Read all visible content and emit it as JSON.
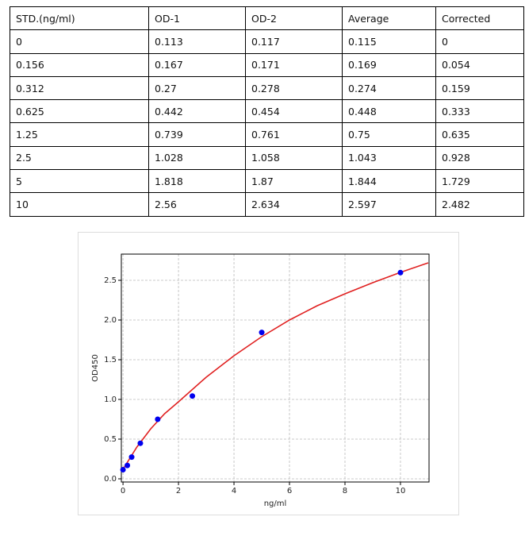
{
  "table": {
    "header": [
      "STD.(ng/ml)",
      "OD-1",
      "OD-2",
      "Average",
      "Corrected"
    ],
    "rows": [
      [
        "0",
        "0.113",
        "0.117",
        "0.115",
        "0"
      ],
      [
        "0.156",
        "0.167",
        "0.171",
        "0.169",
        "0.054"
      ],
      [
        "0.312",
        "0.27",
        "0.278",
        "0.274",
        "0.159"
      ],
      [
        "0.625",
        "0.442",
        "0.454",
        "0.448",
        "0.333"
      ],
      [
        "1.25",
        "0.739",
        "0.761",
        "0.75",
        "0.635"
      ],
      [
        "2.5",
        "1.028",
        "1.058",
        "1.043",
        "0.928"
      ],
      [
        "5",
        "1.818",
        "1.87",
        "1.844",
        "1.729"
      ],
      [
        "10",
        "2.56",
        "2.634",
        "2.597",
        "2.482"
      ]
    ]
  },
  "chart_data": {
    "type": "scatter",
    "xlabel": "ng/ml",
    "ylabel": "OD450",
    "xlim": [
      -0.06,
      11.03
    ],
    "ylim": [
      -0.04,
      2.83
    ],
    "xticks": [
      0,
      2,
      4,
      6,
      8,
      10
    ],
    "yticks": [
      {
        "value": 0,
        "label": "0.0"
      },
      0.5,
      {
        "value": 1,
        "label": "1.0"
      },
      1.5,
      {
        "value": 2,
        "label": "2.0"
      },
      2.5
    ],
    "grid": true,
    "series": [
      {
        "type": "scatter",
        "color": "#0000ee",
        "x": [
          0,
          0.156,
          0.312,
          0.625,
          1.25,
          2.5,
          5,
          10
        ],
        "values": [
          0.115,
          0.169,
          0.274,
          0.448,
          0.75,
          1.043,
          1.844,
          2.597
        ]
      },
      {
        "type": "line",
        "color": "#e02020",
        "x": [
          0,
          0.5,
          1,
          1.5,
          2,
          3,
          4,
          5,
          6,
          7,
          8,
          9,
          10,
          11
        ],
        "values": [
          0.12,
          0.4,
          0.63,
          0.82,
          0.97,
          1.28,
          1.55,
          1.79,
          2.0,
          2.18,
          2.33,
          2.47,
          2.6,
          2.72
        ]
      }
    ]
  }
}
